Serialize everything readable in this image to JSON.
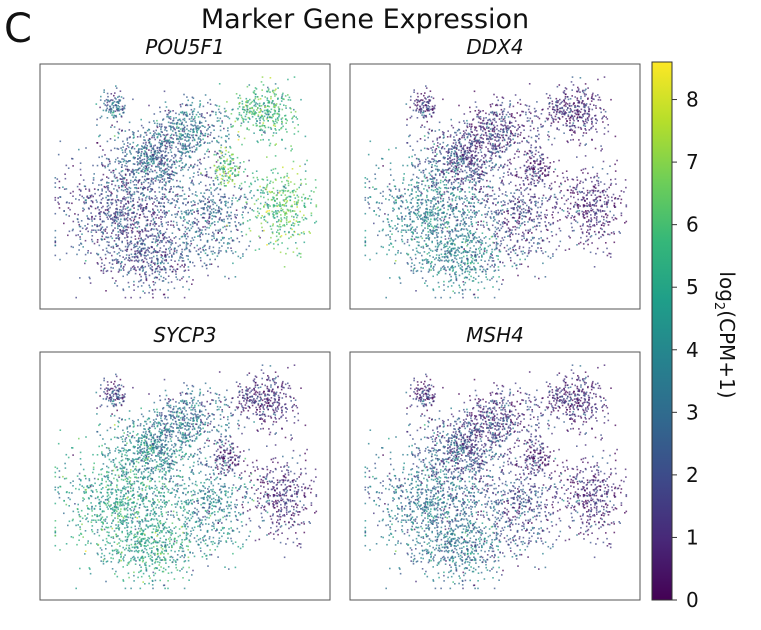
{
  "panel_letter": "C",
  "chart_data": {
    "type": "scatter",
    "title": "Marker Gene Expression",
    "colorbar": {
      "label_prefix": "log",
      "label_subscript": "2",
      "label_suffix": "(CPM+1)",
      "range": [
        0,
        8.6
      ],
      "ticks": [
        "0",
        "1",
        "2",
        "3",
        "4",
        "5",
        "6",
        "7",
        "8"
      ],
      "colormap": [
        "#440154",
        "#482878",
        "#3e4989",
        "#31688e",
        "#26828e",
        "#1f9e89",
        "#35b779",
        "#6ece58",
        "#b5de2b",
        "#fde725"
      ]
    },
    "panels": [
      {
        "gene": "POU5F1",
        "cluster_levels": {
          "left": 1.8,
          "center_left": 2.6,
          "upper_mid": 3.0,
          "top_right": 5.6,
          "center_right": 6.4,
          "lower_right": 6.0,
          "small_top": 2.8
        }
      },
      {
        "gene": "DDX4",
        "cluster_levels": {
          "left": 3.6,
          "center_left": 1.5,
          "upper_mid": 1.1,
          "top_right": 1.0,
          "center_right": 0.8,
          "lower_right": 0.8,
          "small_top": 1.2
        }
      },
      {
        "gene": "SYCP3",
        "cluster_levels": {
          "left": 4.8,
          "center_left": 3.6,
          "upper_mid": 2.8,
          "top_right": 1.1,
          "center_right": 0.9,
          "lower_right": 1.0,
          "small_top": 1.6
        }
      },
      {
        "gene": "MSH4",
        "cluster_levels": {
          "left": 3.2,
          "center_left": 1.8,
          "upper_mid": 1.2,
          "top_right": 1.0,
          "center_right": 0.8,
          "lower_right": 0.9,
          "small_top": 1.1
        }
      }
    ]
  }
}
